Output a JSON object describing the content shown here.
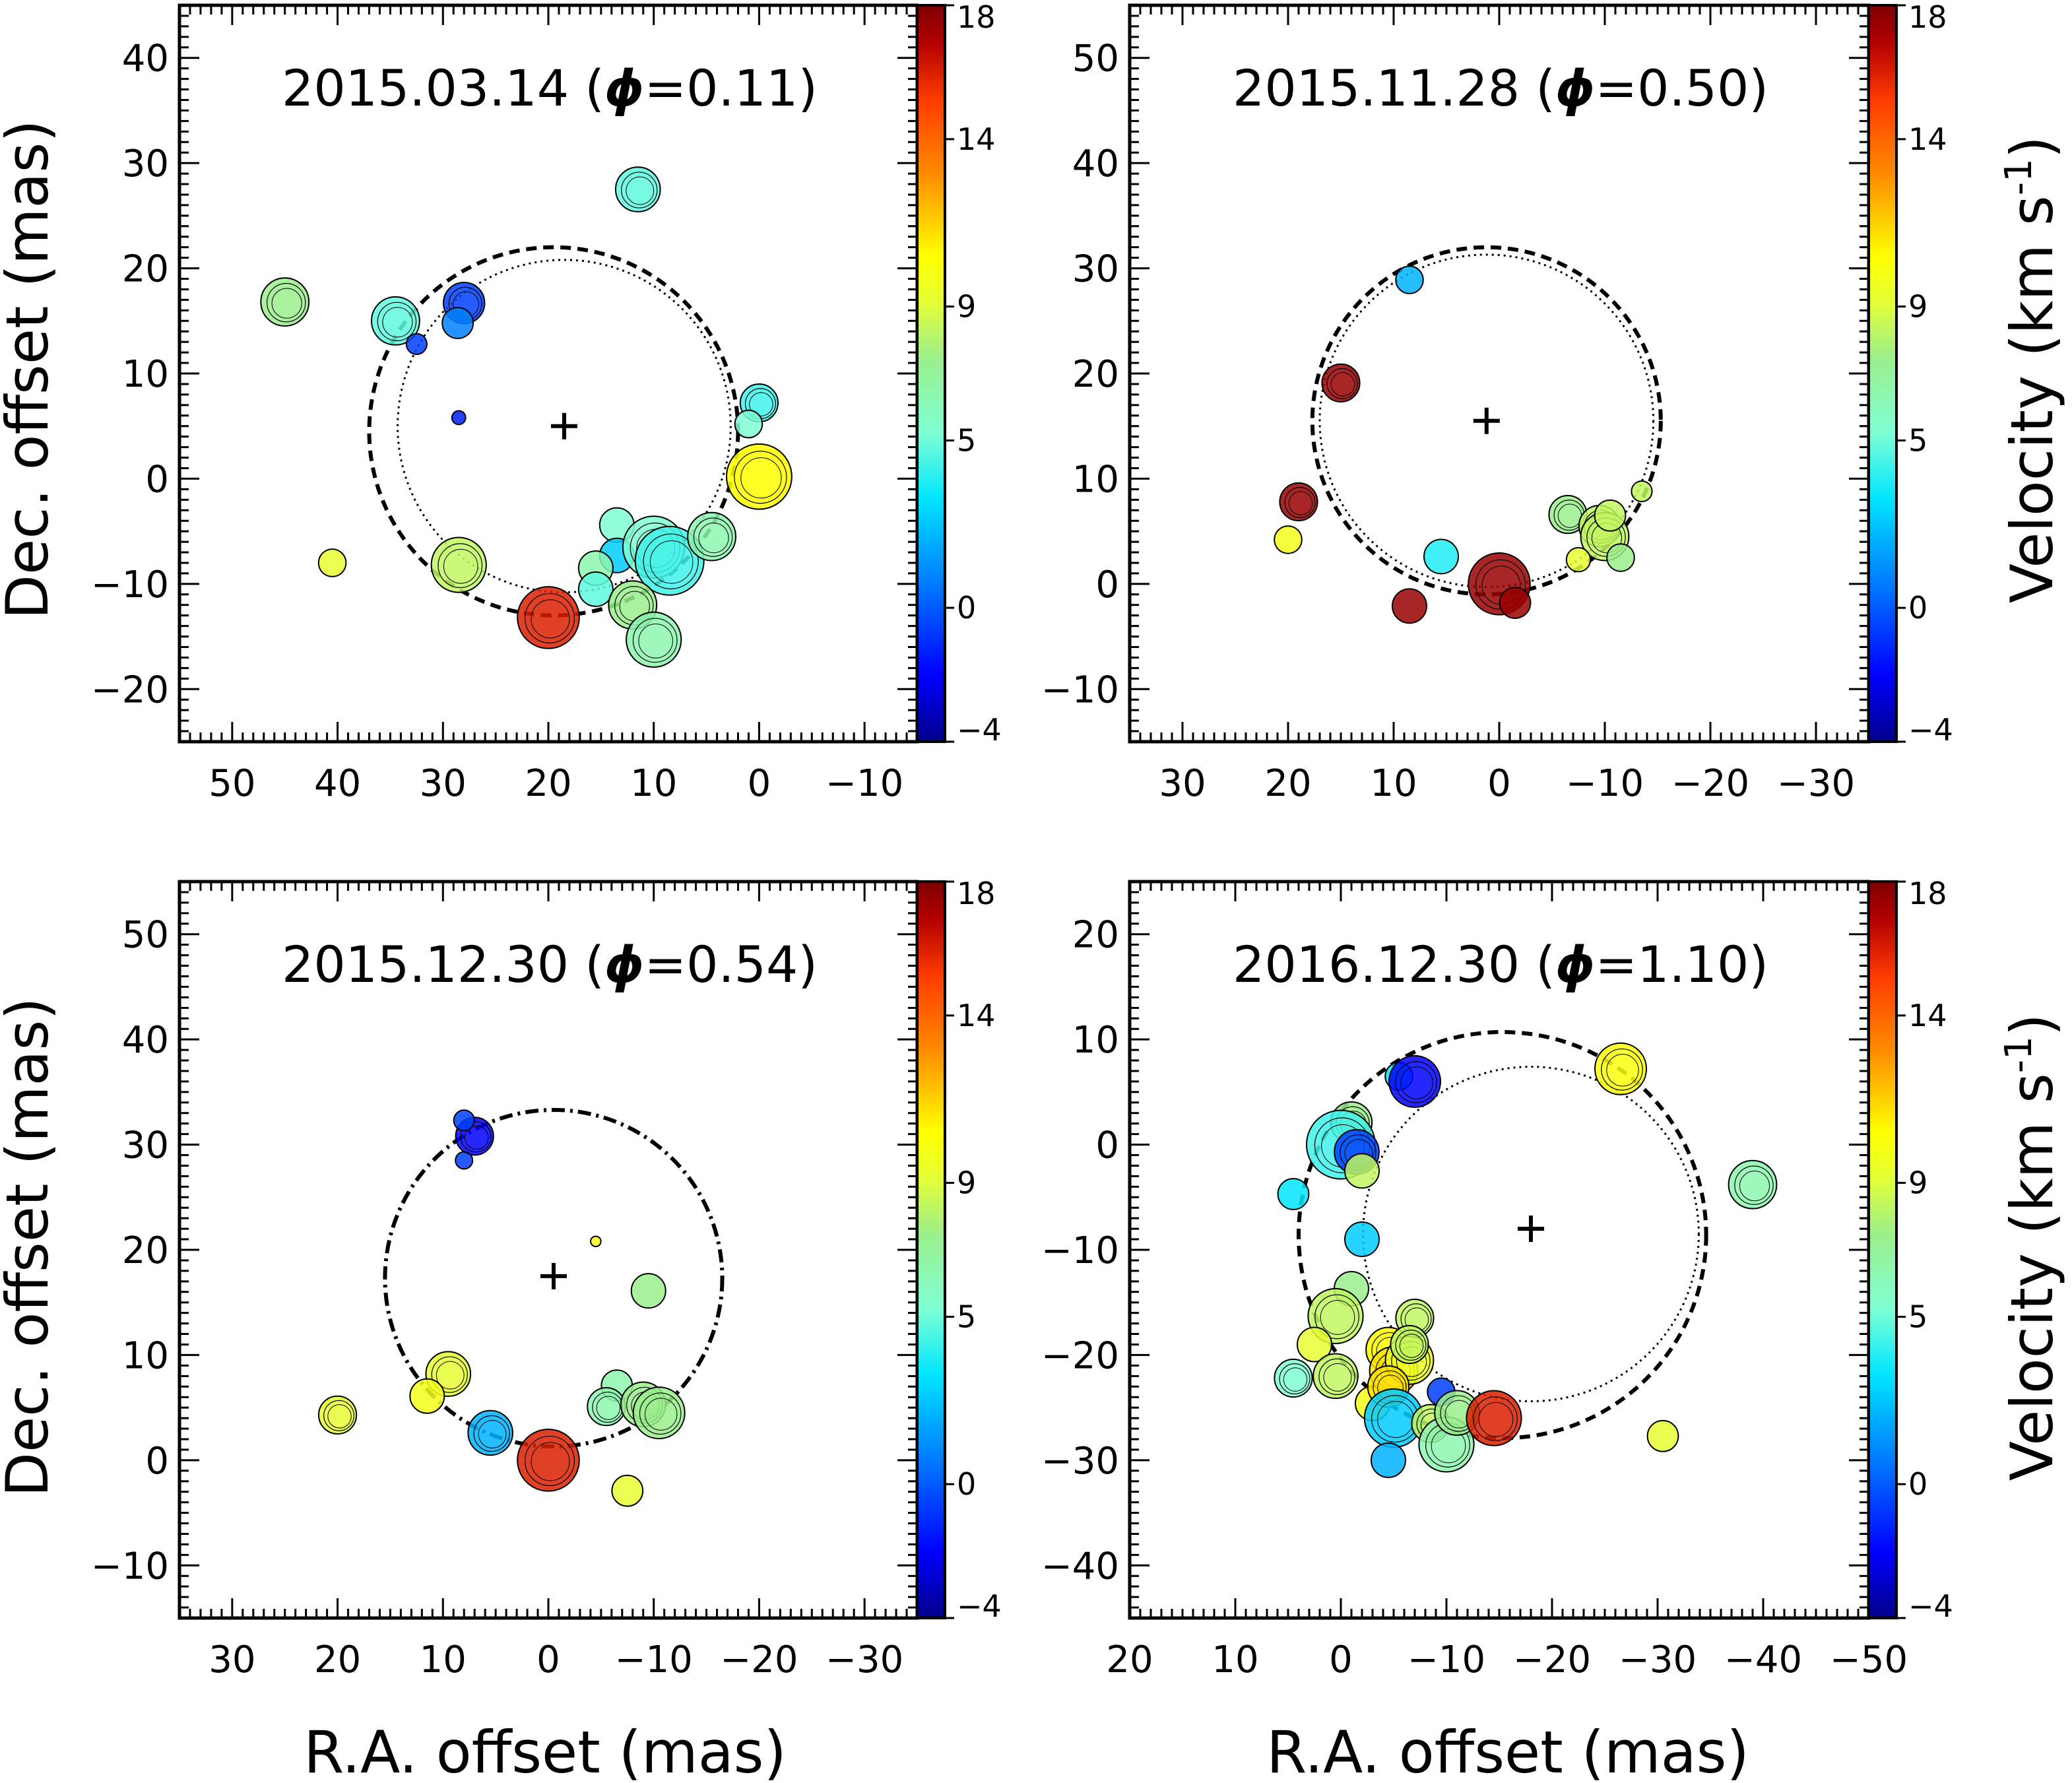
{
  "figure": {
    "xlabel": "R.A. offset (mas)",
    "ylabel": "Dec. offset (mas)",
    "colorbar_label_main": "Velocity (km s",
    "colorbar_label_sup": "-1",
    "colorbar_label_end": ")",
    "colorbar_ticks": [
      "18",
      "14",
      "9",
      "5",
      "0",
      "−4"
    ],
    "colorbar_range": [
      -4,
      18
    ],
    "colormap": [
      "#00008b",
      "#0000ff",
      "#0080ff",
      "#00e5ff",
      "#7fffd4",
      "#9bef8c",
      "#e6ff33",
      "#ffff00",
      "#ff8c00",
      "#ff3c00",
      "#b20000",
      "#7f0000"
    ]
  },
  "chart_data": [
    {
      "type": "scatter",
      "title_date": "2015.03.14 (",
      "title_phi": "ϕ",
      "title_rest": "=0.11)",
      "xlim": [
        55,
        -15
      ],
      "ylim": [
        -25,
        45
      ],
      "xticks": [
        50,
        40,
        30,
        20,
        10,
        0,
        -10
      ],
      "yticks": [
        -20,
        -10,
        0,
        10,
        20,
        30,
        40
      ],
      "xtick_labels": [
        "50",
        "40",
        "30",
        "20",
        "10",
        "0",
        "−10"
      ],
      "ytick_labels": [
        "−20",
        "−10",
        "0",
        "10",
        "20",
        "30",
        "40"
      ],
      "center": [
        18.5,
        5
      ],
      "rings": [
        {
          "style": "dashed",
          "cx": 19.5,
          "cy": 4.5,
          "r": 17.5
        },
        {
          "style": "dotted",
          "cx": 18.5,
          "cy": 5,
          "r": 15.8
        }
      ],
      "points": [
        {
          "x": 45,
          "y": 16.8,
          "v": 6,
          "s": 1.4
        },
        {
          "x": 34.5,
          "y": 15,
          "v": 3.5,
          "s": 1.4
        },
        {
          "x": 28,
          "y": 16.7,
          "v": -1,
          "s": 1.2
        },
        {
          "x": 28.6,
          "y": 14.8,
          "v": 0,
          "s": 0.9
        },
        {
          "x": 32.5,
          "y": 12.8,
          "v": -1,
          "s": 0.6
        },
        {
          "x": 28.5,
          "y": 5.8,
          "v": -1.5,
          "s": 0.4
        },
        {
          "x": 11.5,
          "y": 27.5,
          "v": 3.5,
          "s": 1.3
        },
        {
          "x": 40.5,
          "y": -8,
          "v": 8,
          "s": 0.8
        },
        {
          "x": 28.5,
          "y": -8.2,
          "v": 7,
          "s": 1.6
        },
        {
          "x": 20,
          "y": -13.2,
          "v": 15,
          "s": 1.8
        },
        {
          "x": 13.5,
          "y": -4.4,
          "v": 4,
          "s": 1.0
        },
        {
          "x": 13.5,
          "y": -7.3,
          "v": 1.5,
          "s": 1.0
        },
        {
          "x": 15.5,
          "y": -8.5,
          "v": 5,
          "s": 1.0
        },
        {
          "x": 15.5,
          "y": -10.5,
          "v": 3.5,
          "s": 1.0
        },
        {
          "x": 10,
          "y": -6.5,
          "v": 4,
          "s": 1.8
        },
        {
          "x": 8.5,
          "y": -7.8,
          "v": 3,
          "s": 2.0
        },
        {
          "x": 12,
          "y": -12,
          "v": 6,
          "s": 1.4
        },
        {
          "x": 10,
          "y": -15.3,
          "v": 5,
          "s": 1.6
        },
        {
          "x": 4.5,
          "y": -5.5,
          "v": 5,
          "s": 1.4
        },
        {
          "x": 0,
          "y": 7.2,
          "v": 3,
          "s": 1.1
        },
        {
          "x": 1,
          "y": 5.2,
          "v": 4,
          "s": 0.8
        },
        {
          "x": 0,
          "y": 0.2,
          "v": 10,
          "s": 1.9
        }
      ]
    },
    {
      "type": "scatter",
      "title_date": "2015.11.28 (",
      "title_phi": "ϕ",
      "title_rest": "=0.50)",
      "xlim": [
        35,
        -35
      ],
      "ylim": [
        -15,
        55
      ],
      "xticks": [
        30,
        20,
        10,
        0,
        -10,
        -20,
        -30
      ],
      "yticks": [
        -10,
        0,
        10,
        20,
        30,
        40,
        50
      ],
      "xtick_labels": [
        "30",
        "20",
        "10",
        "0",
        "−10",
        "−20",
        "−30"
      ],
      "ytick_labels": [
        "−10",
        "0",
        "10",
        "20",
        "30",
        "40",
        "50"
      ],
      "center": [
        1.2,
        15.5
      ],
      "rings": [
        {
          "style": "dashed",
          "cx": 1.2,
          "cy": 15.5,
          "r": 16.5
        },
        {
          "style": "dotted",
          "cx": 1.2,
          "cy": 15.5,
          "r": 15.8
        }
      ],
      "points": [
        {
          "x": 8.5,
          "y": 28.9,
          "v": 1,
          "s": 0.8
        },
        {
          "x": 15,
          "y": 19.1,
          "v": 17,
          "s": 1.1
        },
        {
          "x": 19,
          "y": 7.8,
          "v": 17,
          "s": 1.1
        },
        {
          "x": 20,
          "y": 4.2,
          "v": 9,
          "s": 0.8
        },
        {
          "x": 5.5,
          "y": 2.6,
          "v": 2.5,
          "s": 1.0
        },
        {
          "x": 8.5,
          "y": -2.1,
          "v": 17,
          "s": 1.0
        },
        {
          "x": 0,
          "y": 0,
          "v": 17,
          "s": 1.8
        },
        {
          "x": -1.5,
          "y": -1.8,
          "v": 17,
          "s": 0.9
        },
        {
          "x": -6.5,
          "y": 6.6,
          "v": 6,
          "s": 1.1
        },
        {
          "x": -9.5,
          "y": 5.5,
          "v": 7,
          "s": 1.2
        },
        {
          "x": -10,
          "y": 4.5,
          "v": 7,
          "s": 1.4
        },
        {
          "x": -10.5,
          "y": 6.5,
          "v": 7,
          "s": 0.9
        },
        {
          "x": -13.5,
          "y": 8.8,
          "v": 7,
          "s": 0.6
        },
        {
          "x": -7.5,
          "y": 2.3,
          "v": 8,
          "s": 0.7
        },
        {
          "x": -11.5,
          "y": 2.5,
          "v": 6,
          "s": 0.8
        }
      ]
    },
    {
      "type": "scatter",
      "title_date": "2015.12.30 (",
      "title_phi": "ϕ",
      "title_rest": "=0.54)",
      "xlim": [
        35,
        -35
      ],
      "ylim": [
        -15,
        55
      ],
      "xticks": [
        30,
        20,
        10,
        0,
        -10,
        -20,
        -30
      ],
      "yticks": [
        -10,
        0,
        10,
        20,
        30,
        40,
        50
      ],
      "xtick_labels": [
        "30",
        "20",
        "10",
        "0",
        "−10",
        "−20",
        "−30"
      ],
      "ytick_labels": [
        "−10",
        "0",
        "10",
        "20",
        "30",
        "40",
        "50"
      ],
      "center": [
        -0.5,
        17.5
      ],
      "rings": [
        {
          "style": "dashdot",
          "cx": -0.5,
          "cy": 17.3,
          "r": 16
        }
      ],
      "points": [
        {
          "x": 7,
          "y": 30.8,
          "v": -2,
          "s": 1.1
        },
        {
          "x": 8,
          "y": 32.3,
          "v": -1,
          "s": 0.6
        },
        {
          "x": 8,
          "y": 28.5,
          "v": -1,
          "s": 0.5
        },
        {
          "x": -4.5,
          "y": 20.8,
          "v": 9,
          "s": 0.3
        },
        {
          "x": -9.5,
          "y": 16.1,
          "v": 6,
          "s": 1.0
        },
        {
          "x": 9.5,
          "y": 8.2,
          "v": 8,
          "s": 1.3
        },
        {
          "x": 11.5,
          "y": 6.1,
          "v": 9,
          "s": 1.0
        },
        {
          "x": 20,
          "y": 4.3,
          "v": 8,
          "s": 1.1
        },
        {
          "x": 5.5,
          "y": 2.6,
          "v": 1,
          "s": 1.3
        },
        {
          "x": 0,
          "y": 0,
          "v": 15,
          "s": 1.8
        },
        {
          "x": -6.5,
          "y": 7.1,
          "v": 5,
          "s": 0.9
        },
        {
          "x": -5.5,
          "y": 5.1,
          "v": 5,
          "s": 1.1
        },
        {
          "x": -9,
          "y": 5.3,
          "v": 6,
          "s": 1.3
        },
        {
          "x": -10.5,
          "y": 4.5,
          "v": 6,
          "s": 1.5
        },
        {
          "x": -7.5,
          "y": -2.9,
          "v": 8,
          "s": 0.9
        }
      ]
    },
    {
      "type": "scatter",
      "title_date": "2016.12.30 (",
      "title_phi": "ϕ",
      "title_rest": "=1.10)",
      "xlim": [
        20,
        -50
      ],
      "ylim": [
        -45,
        25
      ],
      "xticks": [
        20,
        10,
        0,
        -10,
        -20,
        -30,
        -40,
        -50
      ],
      "yticks": [
        -40,
        -30,
        -20,
        -10,
        0,
        10,
        20
      ],
      "xtick_labels": [
        "20",
        "10",
        "0",
        "−10",
        "−20",
        "−30",
        "−40",
        "−50"
      ],
      "ytick_labels": [
        "−40",
        "−30",
        "−20",
        "−10",
        "0",
        "10",
        "20"
      ],
      "center": [
        -18,
        -8
      ],
      "rings": [
        {
          "style": "dashed",
          "cx": -15.3,
          "cy": -8.6,
          "r": 19.3
        },
        {
          "style": "dotted",
          "cx": -18,
          "cy": -8.5,
          "r": 15.9
        }
      ],
      "points": [
        {
          "x": -5.5,
          "y": 6.5,
          "v": 2,
          "s": 0.8
        },
        {
          "x": -7,
          "y": 6,
          "v": -2,
          "s": 1.5
        },
        {
          "x": -26.5,
          "y": 7.2,
          "v": 9.5,
          "s": 1.5
        },
        {
          "x": -39,
          "y": -3.8,
          "v": 5,
          "s": 1.4
        },
        {
          "x": -1,
          "y": 2.1,
          "v": 6,
          "s": 1.2
        },
        {
          "x": 0,
          "y": 0,
          "v": 3,
          "s": 2.0
        },
        {
          "x": -1.5,
          "y": -0.7,
          "v": -1,
          "s": 1.3
        },
        {
          "x": -2,
          "y": -2.5,
          "v": 7,
          "s": 1.0
        },
        {
          "x": 4.5,
          "y": -4.7,
          "v": 2,
          "s": 0.9
        },
        {
          "x": -2,
          "y": -9,
          "v": 1.5,
          "s": 1.0
        },
        {
          "x": -1,
          "y": -13.7,
          "v": 6,
          "s": 1.0
        },
        {
          "x": 0.5,
          "y": -16.3,
          "v": 7,
          "s": 1.6
        },
        {
          "x": 2.5,
          "y": -19,
          "v": 8,
          "s": 1.0
        },
        {
          "x": 0.5,
          "y": -22,
          "v": 7,
          "s": 1.3
        },
        {
          "x": 4.5,
          "y": -22.2,
          "v": 4,
          "s": 1.1
        },
        {
          "x": -3,
          "y": -24.6,
          "v": 9,
          "s": 1.0
        },
        {
          "x": -4.5,
          "y": -19.5,
          "v": 10,
          "s": 1.3
        },
        {
          "x": -5,
          "y": -21.5,
          "v": 10.5,
          "s": 1.4
        },
        {
          "x": -6.5,
          "y": -20.5,
          "v": 8.5,
          "s": 1.4
        },
        {
          "x": -7,
          "y": -16.5,
          "v": 7,
          "s": 1.1
        },
        {
          "x": -6.5,
          "y": -19,
          "v": 7,
          "s": 1.1
        },
        {
          "x": -4.5,
          "y": -23,
          "v": 10.5,
          "s": 1.2
        },
        {
          "x": -5,
          "y": -26,
          "v": 1.5,
          "s": 1.7
        },
        {
          "x": -4.5,
          "y": -30,
          "v": 1,
          "s": 1.0
        },
        {
          "x": -9.5,
          "y": -23.5,
          "v": -1,
          "s": 0.8
        },
        {
          "x": -8.5,
          "y": -26.5,
          "v": 7,
          "s": 1.1
        },
        {
          "x": -10,
          "y": -28.5,
          "v": 5,
          "s": 1.6
        },
        {
          "x": -11,
          "y": -25.5,
          "v": 6,
          "s": 1.3
        },
        {
          "x": -14.5,
          "y": -26,
          "v": 15,
          "s": 1.6
        },
        {
          "x": -30.5,
          "y": -27.7,
          "v": 8,
          "s": 0.9
        }
      ]
    }
  ]
}
